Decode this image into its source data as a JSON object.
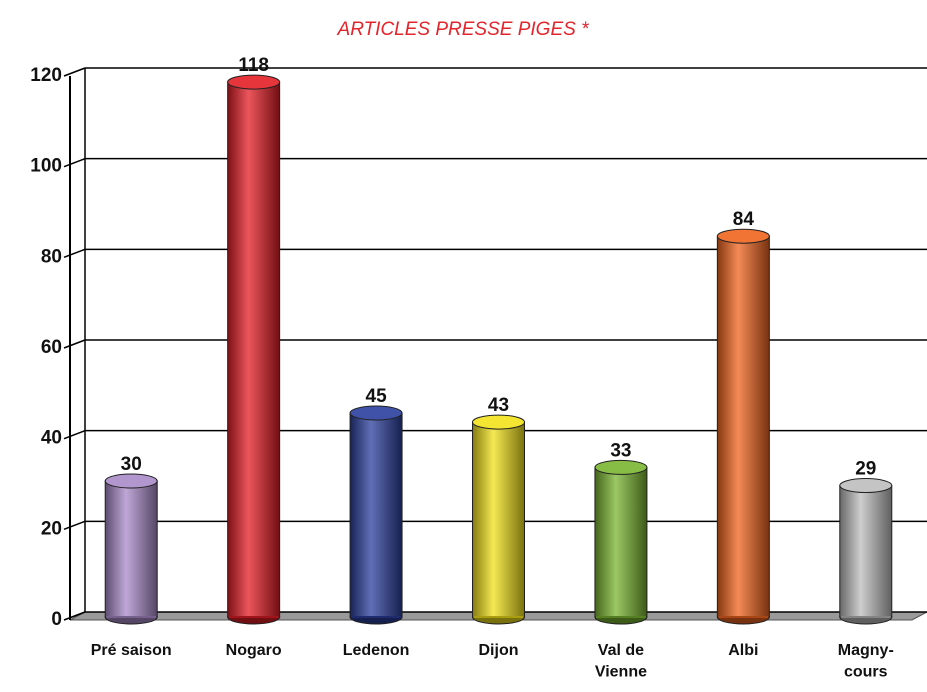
{
  "chart_data": {
    "type": "bar",
    "title": "ARTICLES PRESSE PIGES *",
    "categories": [
      "Pré saison",
      "Nogaro",
      "Ledenon",
      "Dijon",
      "Val de\nVienne",
      "Albi",
      "Magny-\ncours"
    ],
    "values": [
      30,
      118,
      45,
      43,
      33,
      84,
      29
    ],
    "colors": [
      "#a98bc9",
      "#e41e26",
      "#2b3f9e",
      "#f2e21a",
      "#7ab530",
      "#f0641e",
      "#bdbdbd"
    ],
    "ylim": [
      0,
      120
    ],
    "yticks": [
      0,
      20,
      40,
      60,
      80,
      100,
      120
    ],
    "grid": true
  }
}
